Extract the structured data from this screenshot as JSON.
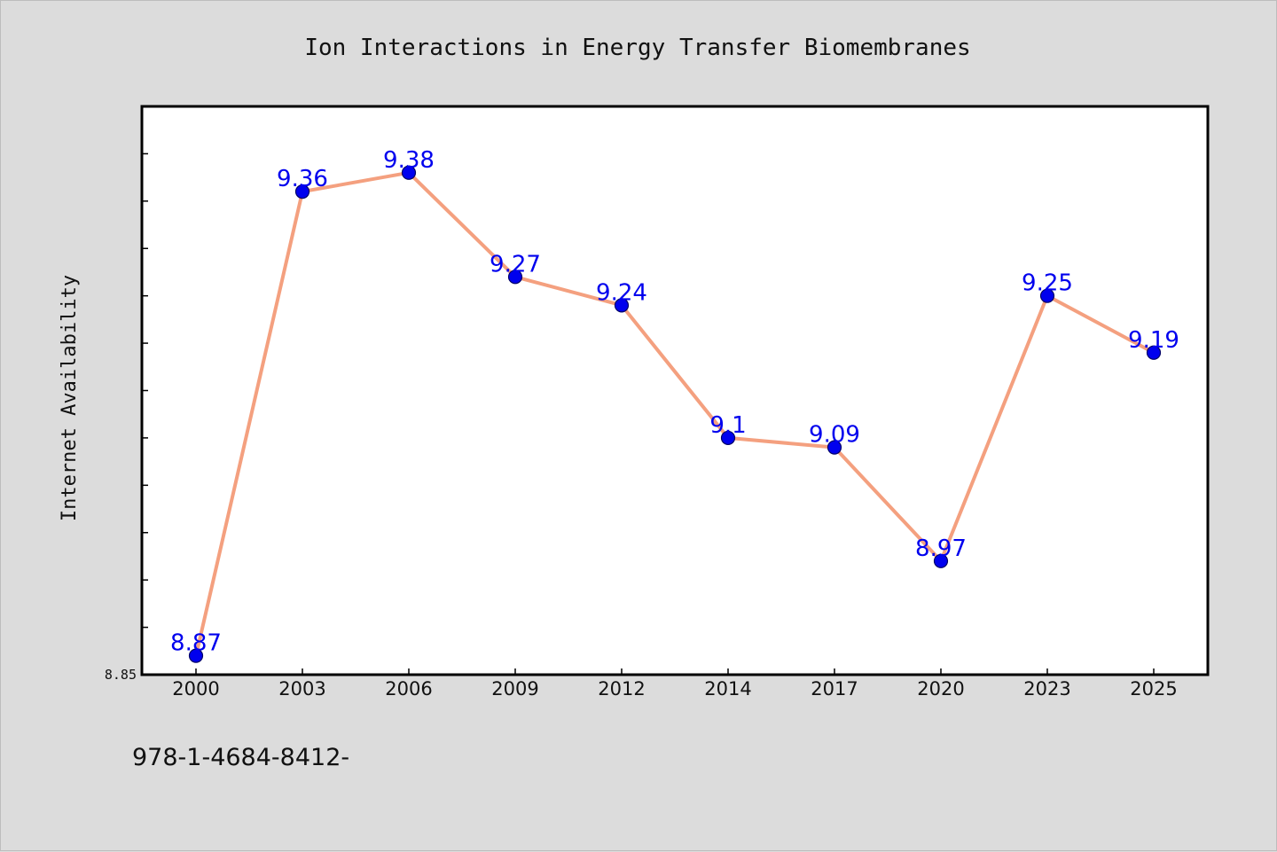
{
  "chart_data": {
    "type": "line",
    "title": "Ion Interactions in Energy Transfer Biomembranes",
    "xlabel": "",
    "ylabel": "Internet Availability",
    "categories": [
      "2000",
      "2003",
      "2006",
      "2009",
      "2012",
      "2014",
      "2017",
      "2020",
      "2023",
      "2025"
    ],
    "series": [
      {
        "values": [
          8.87,
          9.36,
          9.38,
          9.27,
          9.24,
          9.1,
          9.09,
          8.97,
          9.25,
          9.19
        ],
        "labels": [
          "8.87",
          "9.36",
          "9.38",
          "9.27",
          "9.24",
          "9.1",
          "9.09",
          "8.97",
          "9.25",
          "9.19"
        ]
      }
    ],
    "ylim": [
      8.85,
      9.45
    ],
    "y_tick_labels": [
      "8.85"
    ],
    "grid": false,
    "legend": "none"
  },
  "colors": {
    "line": "#f4a07f",
    "marker": "#0000ee",
    "marker_edge": "#000066",
    "label": "#0000ee"
  },
  "footer": {
    "text": "978-1-4684-8412-"
  }
}
